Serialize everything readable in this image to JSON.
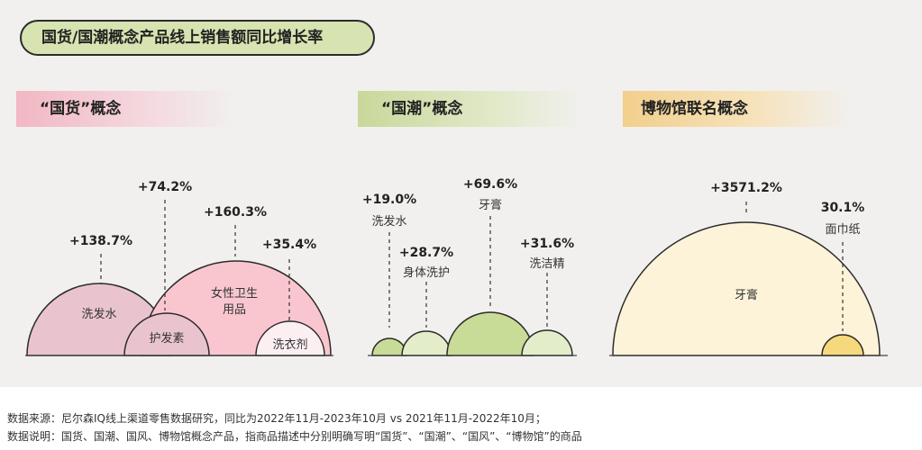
{
  "header": {
    "title": "国货/国潮概念产品线上销售额同比增长率"
  },
  "categories": {
    "guohuo": "“国货”概念",
    "guochao": "“国潮”概念",
    "museum": "博物馆联名概念"
  },
  "colors": {
    "guohuo_pink": "#f9c6cf",
    "guohuo_mauve": "#e9c4cf",
    "guochao_green": "#c9dc97",
    "guochao_light": "#e4edc9",
    "museum_cream": "#fdf3d9",
    "museum_yellow": "#f6d97c",
    "title_bg": "#d7e3b0"
  },
  "chart_data": [
    {
      "type": "bubble",
      "group": "“国货”概念",
      "points": [
        {
          "category": "洗发水",
          "growth_label": "+138.7%",
          "value": 138.7
        },
        {
          "category": "护发素",
          "growth_label": "+74.2%",
          "value": 74.2
        },
        {
          "category": "女性卫生用品",
          "growth_label": "+160.3%",
          "value": 160.3
        },
        {
          "category": "洗衣剂",
          "growth_label": "+35.4%",
          "value": 35.4
        }
      ]
    },
    {
      "type": "bubble",
      "group": "“国潮”概念",
      "points": [
        {
          "category": "洗发水",
          "growth_label": "+19.0%",
          "value": 19.0
        },
        {
          "category": "身体洗护",
          "growth_label": "+28.7%",
          "value": 28.7
        },
        {
          "category": "牙膏",
          "growth_label": "+69.6%",
          "value": 69.6
        },
        {
          "category": "洗洁精",
          "growth_label": "+31.6%",
          "value": 31.6
        }
      ]
    },
    {
      "type": "bubble",
      "group": "博物馆联名概念",
      "points": [
        {
          "category": "牙膏",
          "growth_label": "+3571.2%",
          "value": 3571.2
        },
        {
          "category": "面巾纸",
          "growth_label": "30.1%",
          "value": 30.1
        }
      ]
    }
  ],
  "notes": {
    "source": "数据来源：尼尔森IQ线上渠道零售数据研究，同比为2022年11月-2023年10月 vs 2021年11月-2022年10月；",
    "explanation": "数据说明：国货、国潮、国风、博物馆概念产品，指商品描述中分别明确写明“国货”、“国潮”、“国风”、“博物馆”的商品"
  }
}
